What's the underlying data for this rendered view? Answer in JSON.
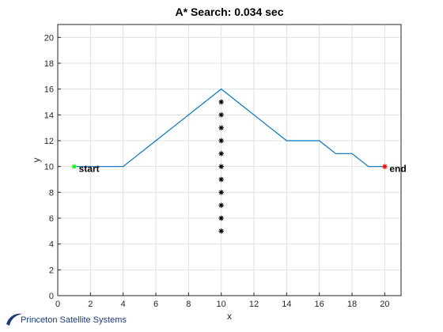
{
  "chart_data": {
    "type": "line",
    "title": "A* Search: 0.034 sec",
    "xlabel": "x",
    "ylabel": "y",
    "xlim": [
      0,
      21
    ],
    "ylim": [
      0,
      21
    ],
    "xticks": [
      0,
      2,
      4,
      6,
      8,
      10,
      12,
      14,
      16,
      18,
      20
    ],
    "yticks": [
      0,
      2,
      4,
      6,
      8,
      10,
      12,
      14,
      16,
      18,
      20
    ],
    "grid": true,
    "series": [
      {
        "type": "line",
        "color": "#0072bd",
        "x": [
          1,
          2,
          3,
          4,
          5,
          6,
          7,
          8,
          9,
          10,
          11,
          12,
          13,
          14,
          15,
          16,
          17,
          18,
          19,
          20
        ],
        "y": [
          10,
          10,
          10,
          10,
          11,
          12,
          13,
          14,
          15,
          16,
          15,
          14,
          13,
          12,
          12,
          12,
          11,
          11,
          10,
          10
        ]
      },
      {
        "type": "scatter",
        "marker": "*",
        "color": "#000000",
        "x": [
          10,
          10,
          10,
          10,
          10,
          10,
          10,
          10,
          10,
          10,
          10
        ],
        "y": [
          5,
          6,
          7,
          8,
          9,
          10,
          11,
          12,
          13,
          14,
          15
        ]
      },
      {
        "type": "scatter",
        "marker": "*",
        "color": "#00ff00",
        "x": [
          1
        ],
        "y": [
          10
        ]
      },
      {
        "type": "scatter",
        "marker": "*",
        "color": "#ff0000",
        "x": [
          20
        ],
        "y": [
          10
        ]
      }
    ],
    "annotations": [
      {
        "text": "start",
        "x": 1,
        "y": 10
      },
      {
        "text": "end",
        "x": 20,
        "y": 10
      }
    ]
  },
  "logo": {
    "text": "Princeton Satellite Systems",
    "color": "#1a3a7a"
  }
}
